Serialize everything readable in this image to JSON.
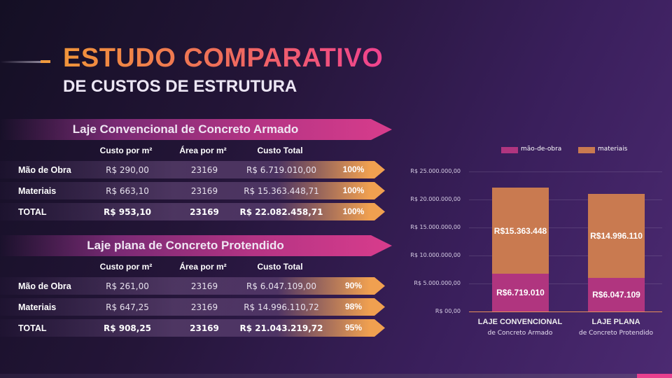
{
  "title": {
    "line1": "ESTUDO COMPARATIVO",
    "line2": "DE CUSTOS DE ESTRUTURA"
  },
  "tables": [
    {
      "title": "Laje Convencional de Concreto Armado",
      "headers": [
        "Custo por m²",
        "Área por m²",
        "Custo Total"
      ],
      "rows": [
        {
          "label": "Mão de Obra",
          "custo": "R$ 290,00",
          "area": "23169",
          "total": "R$ 6.719.010,00",
          "pct": "100%"
        },
        {
          "label": "Materiais",
          "custo": "R$ 663,10",
          "area": "23169",
          "total": "R$ 15.363.448,71",
          "pct": "100%"
        },
        {
          "label": "TOTAL",
          "custo": "R$ 953,10",
          "area": "23169",
          "total": "R$ 22.082.458,71",
          "pct": "100%"
        }
      ]
    },
    {
      "title": "Laje plana de Concreto Protendido",
      "headers": [
        "Custo por m²",
        "Área por m²",
        "Custo Total"
      ],
      "rows": [
        {
          "label": "Mão de Obra",
          "custo": "R$ 261,00",
          "area": "23169",
          "total": "R$ 6.047.109,00",
          "pct": "90%"
        },
        {
          "label": "Materiais",
          "custo": "R$ 647,25",
          "area": "23169",
          "total": "R$ 14.996.110,72",
          "pct": "98%"
        },
        {
          "label": "TOTAL",
          "custo": "R$ 908,25",
          "area": "23169",
          "total": "R$ 21.043.219,72",
          "pct": "95%"
        }
      ]
    }
  ],
  "chart_data": {
    "type": "bar",
    "stacked": true,
    "categories": [
      {
        "line1": "LAJE CONVENCIONAL",
        "line2": "de Concreto Armado"
      },
      {
        "line1": "LAJE PLANA",
        "line2": "de Concreto Protendido"
      }
    ],
    "series": [
      {
        "name": "mão-de-obra",
        "values": [
          6719010,
          6047109
        ],
        "labels": [
          "R$6.719.010",
          "R$6.047.109"
        ],
        "color": "#b0357f"
      },
      {
        "name": "materiais",
        "values": [
          15363448,
          14996110
        ],
        "labels": [
          "R$15.363.448",
          "R$14.996.110"
        ],
        "color": "#c97a50"
      }
    ],
    "yticks": [
      "R$ 00,00",
      "R$ 5.000.000,00",
      "R$ 10.000.000,00",
      "R$ 15.000.000,00",
      "R$ 20.000.000,00",
      "R$ 25.000.000,00"
    ],
    "ylim": [
      0,
      25000000
    ],
    "legend": "top",
    "grid": true
  }
}
